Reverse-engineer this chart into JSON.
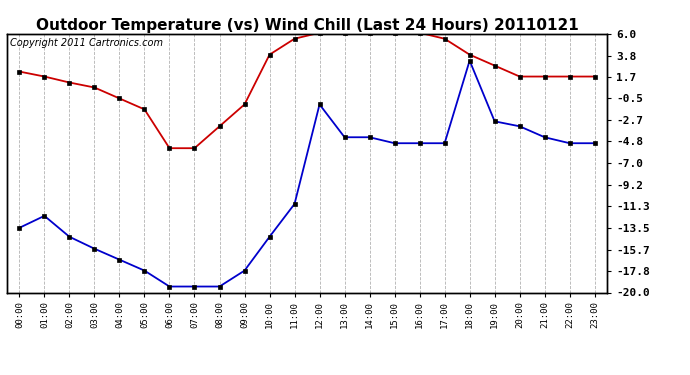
{
  "title": "Outdoor Temperature (vs) Wind Chill (Last 24 Hours) 20110121",
  "copyright": "Copyright 2011 Cartronics.com",
  "hours": [
    "00:00",
    "01:00",
    "02:00",
    "03:00",
    "04:00",
    "05:00",
    "06:00",
    "07:00",
    "08:00",
    "09:00",
    "10:00",
    "11:00",
    "12:00",
    "13:00",
    "14:00",
    "15:00",
    "16:00",
    "17:00",
    "18:00",
    "19:00",
    "20:00",
    "21:00",
    "22:00",
    "23:00"
  ],
  "temp": [
    2.2,
    1.7,
    1.1,
    0.6,
    -0.5,
    -1.6,
    -5.5,
    -5.5,
    -3.3,
    -1.1,
    3.9,
    5.5,
    6.1,
    6.1,
    6.1,
    6.1,
    6.1,
    5.5,
    3.9,
    2.8,
    1.7,
    1.7,
    1.7,
    1.7
  ],
  "wind_chill": [
    -13.5,
    -12.3,
    -14.4,
    -15.6,
    -16.7,
    -17.8,
    -19.4,
    -19.4,
    -19.4,
    -17.8,
    -14.4,
    -11.1,
    -1.1,
    -4.4,
    -4.4,
    -5.0,
    -5.0,
    -5.0,
    3.3,
    -2.8,
    -3.3,
    -4.4,
    -5.0,
    -5.0
  ],
  "ylim": [
    -20.0,
    6.0
  ],
  "yticks": [
    6.0,
    3.8,
    1.7,
    -0.5,
    -2.7,
    -4.8,
    -7.0,
    -9.2,
    -11.3,
    -13.5,
    -15.7,
    -17.8,
    -20.0
  ],
  "temp_color": "#cc0000",
  "wind_chill_color": "#0000cc",
  "background_color": "#ffffff",
  "grid_color": "#aaaaaa",
  "title_fontsize": 11,
  "copyright_fontsize": 7
}
